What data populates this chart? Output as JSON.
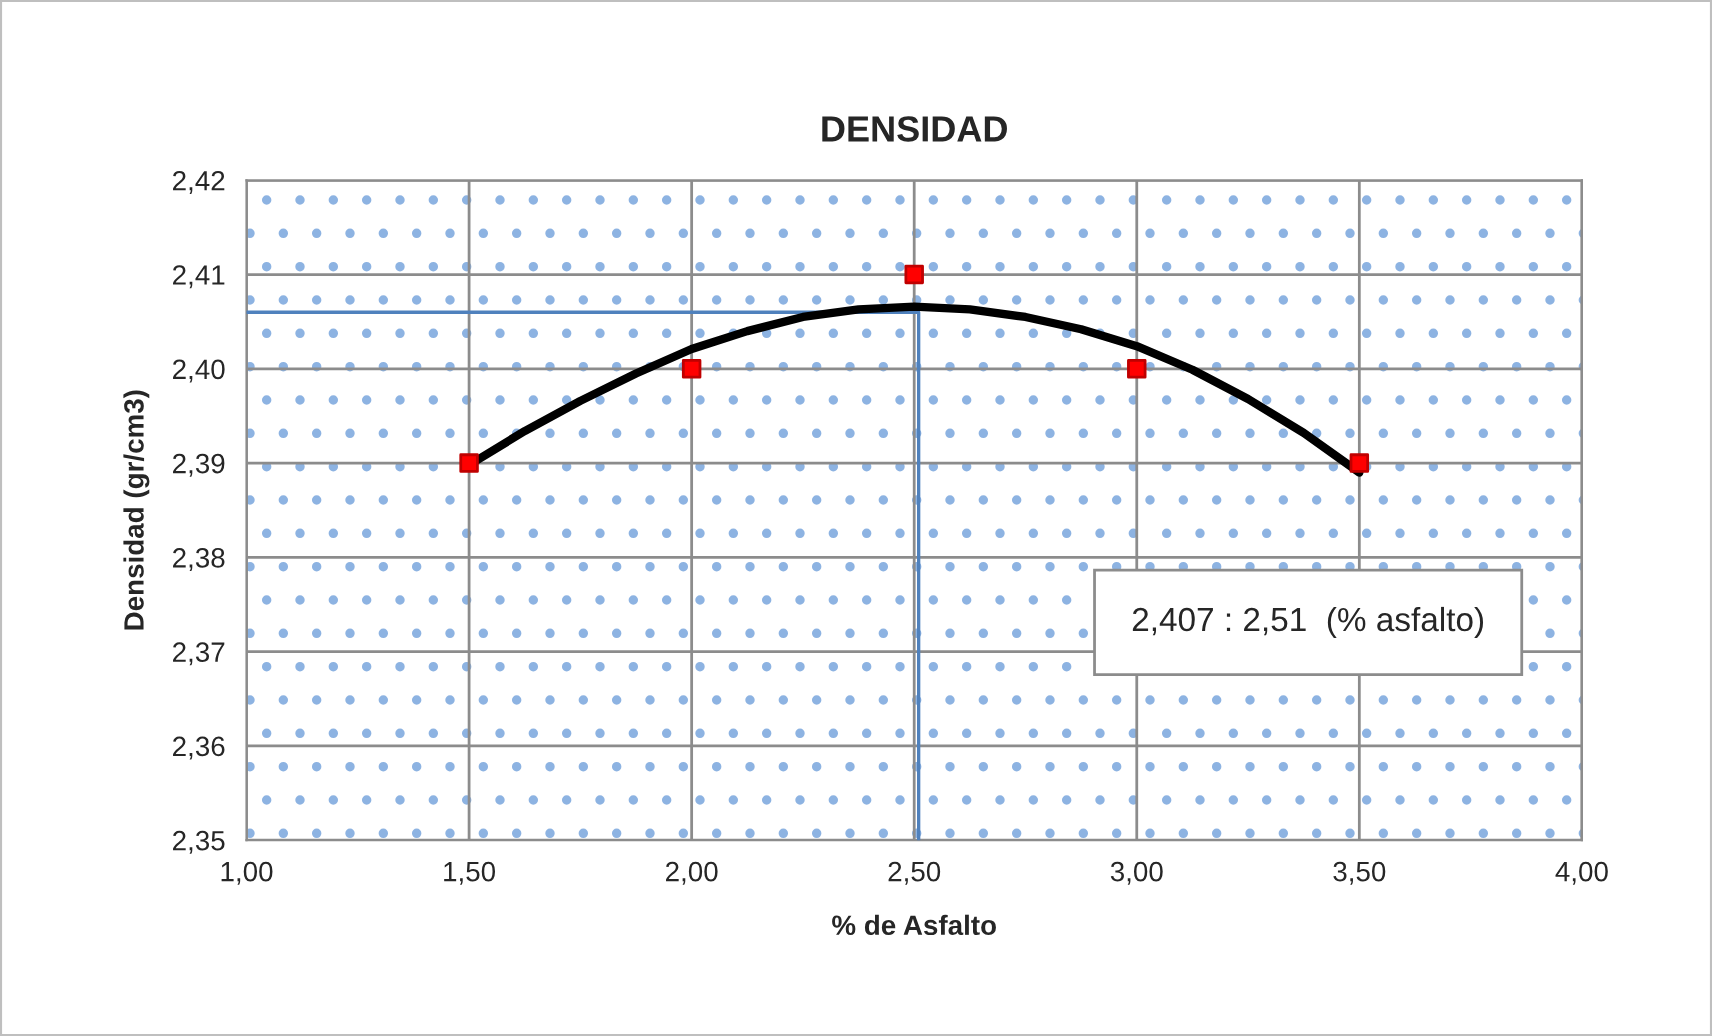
{
  "chart_data": {
    "type": "scatter",
    "title": "DENSIDAD",
    "xlabel": "% de Asfalto",
    "ylabel": "Densidad (gr/cm3)",
    "xlim": [
      1.0,
      4.0
    ],
    "ylim": [
      2.35,
      2.42
    ],
    "xticks": [
      {
        "value": 1.0,
        "label": "1,00"
      },
      {
        "value": 1.5,
        "label": "1,50"
      },
      {
        "value": 2.0,
        "label": "2,00"
      },
      {
        "value": 2.5,
        "label": "2,50"
      },
      {
        "value": 3.0,
        "label": "3,00"
      },
      {
        "value": 3.5,
        "label": "3,50"
      },
      {
        "value": 4.0,
        "label": "4,00"
      }
    ],
    "yticks": [
      {
        "value": 2.35,
        "label": "2,35"
      },
      {
        "value": 2.36,
        "label": "2,36"
      },
      {
        "value": 2.37,
        "label": "2,37"
      },
      {
        "value": 2.38,
        "label": "2,38"
      },
      {
        "value": 2.39,
        "label": "2,39"
      },
      {
        "value": 2.4,
        "label": "2,40"
      },
      {
        "value": 2.41,
        "label": "2,41"
      },
      {
        "value": 2.42,
        "label": "2,42"
      }
    ],
    "grid": true,
    "legend": false,
    "series": [
      {
        "type": "line",
        "color": "#4f81bd",
        "line_style": "solid",
        "marker": "none",
        "x": [
          1.0,
          2.51,
          2.51
        ],
        "values": [
          2.406,
          2.406,
          2.35
        ]
      },
      {
        "type": "line",
        "color": "#000000",
        "line_style": "solid",
        "marker": "none",
        "x": [
          1.5,
          1.625,
          1.75,
          1.875,
          2.0,
          2.125,
          2.25,
          2.375,
          2.5,
          2.625,
          2.75,
          2.875,
          3.0,
          3.125,
          3.25,
          3.375,
          3.5
        ],
        "values": [
          2.3898,
          2.3934,
          2.3966,
          2.3995,
          2.4021,
          2.404,
          2.4055,
          2.4063,
          2.4066,
          2.4063,
          2.4055,
          2.4042,
          2.4024,
          2.3999,
          2.3968,
          2.3932,
          2.389
        ]
      },
      {
        "color": "#ff0000",
        "marker": "square",
        "x": [
          1.5,
          2.0,
          2.5,
          3.0,
          3.5
        ],
        "values": [
          2.39,
          2.4,
          2.41,
          2.4,
          2.39
        ]
      }
    ],
    "annotations": [
      "2,407 : 2,51  (% asfalto)"
    ]
  }
}
